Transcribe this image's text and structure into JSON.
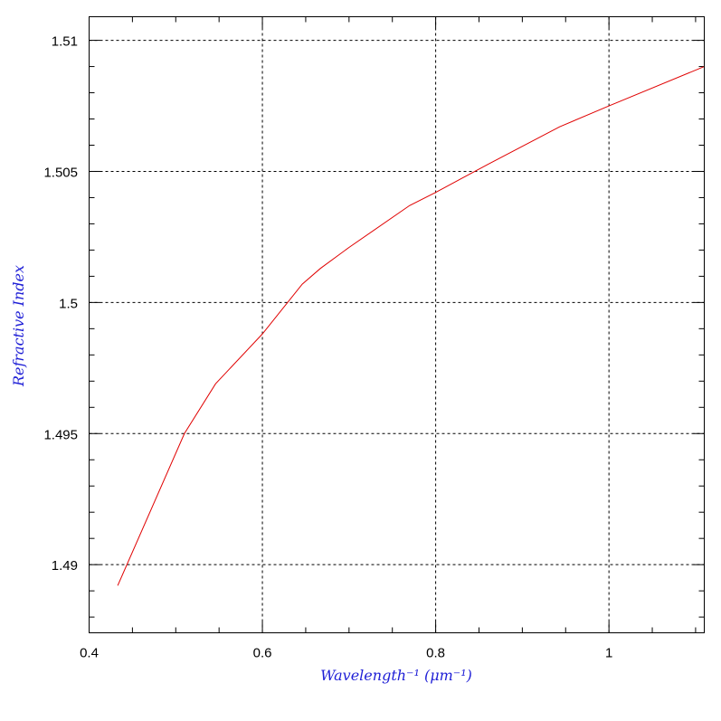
{
  "chart_data": {
    "type": "line",
    "xlabel": "Wavelength⁻¹ (μm⁻¹)",
    "ylabel": "Refractive Index",
    "xlim": [
      0.4,
      1.11
    ],
    "ylim": [
      1.4874,
      1.5109
    ],
    "grid": true,
    "x_ticks": [
      0.4,
      0.6,
      0.8,
      1.0
    ],
    "x_tick_labels": [
      "0.4",
      "0.6",
      "0.8",
      "1"
    ],
    "x_minor_step": 0.05,
    "y_ticks": [
      1.49,
      1.495,
      1.5,
      1.505,
      1.51
    ],
    "y_tick_labels": [
      "1.49",
      "1.495",
      "1.5",
      "1.505",
      "1.51"
    ],
    "y_minor_step": 0.001,
    "series": [
      {
        "color": "#e00000",
        "x": [
          0.433,
          0.51,
          0.546,
          0.6,
          0.646,
          0.667,
          0.7,
          0.77,
          0.8,
          0.862,
          0.943,
          1.0,
          1.11
        ],
        "y": [
          1.4892,
          1.495,
          1.4969,
          1.4988,
          1.5007,
          1.5013,
          1.5021,
          1.5037,
          1.5042,
          1.5053,
          1.5067,
          1.5075,
          1.509
        ]
      }
    ]
  }
}
